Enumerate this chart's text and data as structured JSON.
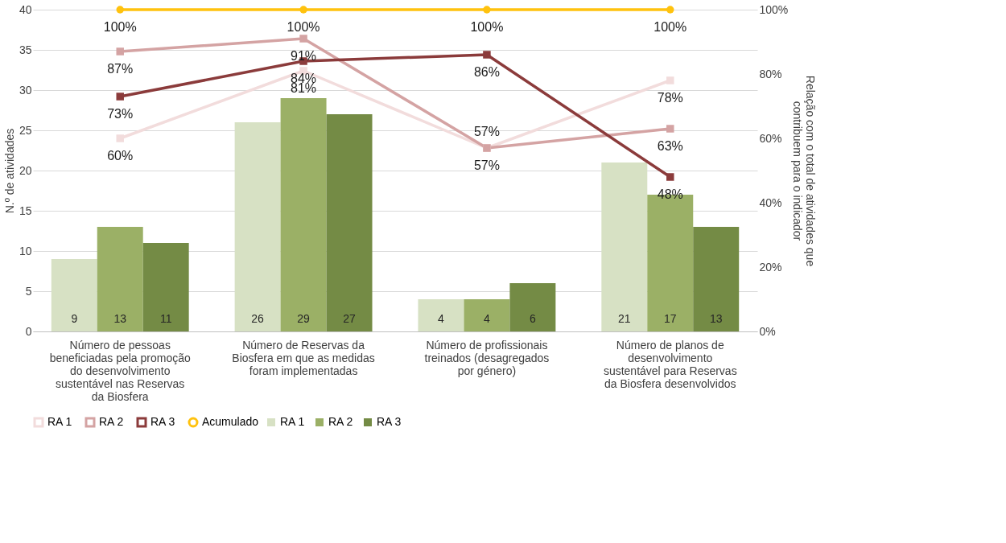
{
  "chart_data": {
    "type": "bar",
    "ylabel": "N.º de atividades",
    "y2label": "Relação com o total de atividades que contribuem para o indicador",
    "categories": [
      "Número de pessoas beneficiadas pela promoção do desenvolvimento sustentável nas Reservas da Biosfera",
      "Número de Reservas da Biosfera em que as medidas foram implementadas",
      "Número de profissionais treinados (desagregados por género)",
      "Número de planos de desenvolvimento sustentável para Reservas da Biosfera desenvolvidos"
    ],
    "series": [
      {
        "name": "RA 1",
        "color": "#d7e1c4",
        "values": [
          9,
          26,
          4,
          21
        ]
      },
      {
        "name": "RA 2",
        "color": "#9bb066",
        "values": [
          13,
          29,
          4,
          17
        ]
      },
      {
        "name": "RA 3",
        "color": "#748b45",
        "values": [
          11,
          27,
          6,
          13
        ]
      },
      {
        "name": "RA 1",
        "type": "line",
        "axis": "y2",
        "marker": "square",
        "color": "#f2dcdc",
        "values": [
          60,
          81,
          57,
          78
        ],
        "value_labels": [
          "60%",
          "81%",
          "57%",
          "78%"
        ]
      },
      {
        "name": "RA 2",
        "type": "line",
        "axis": "y2",
        "marker": "square",
        "color": "#d4a3a3",
        "values": [
          87,
          91,
          57,
          63
        ],
        "value_labels": [
          "87%",
          "91%",
          "57%",
          "63%"
        ]
      },
      {
        "name": "RA 3",
        "type": "line",
        "axis": "y2",
        "marker": "square",
        "color": "#8b3b3b",
        "values": [
          73,
          84,
          86,
          48
        ],
        "value_labels": [
          "73%",
          "84%",
          "86%",
          "48%"
        ]
      },
      {
        "name": "Acumulado",
        "type": "line",
        "axis": "y2",
        "marker": "circle",
        "color": "#ffc20e",
        "values": [
          100,
          100,
          100,
          100
        ],
        "value_labels": [
          "100%",
          "100%",
          "100%",
          "100%"
        ]
      }
    ],
    "data_labels": true,
    "ylim": [
      0,
      40
    ],
    "yticks": [
      0,
      5,
      10,
      15,
      20,
      25,
      30,
      35,
      40
    ],
    "y2lim": [
      0,
      100
    ],
    "y2ticks": [
      {
        "value": 0,
        "label": "0%"
      },
      {
        "value": 20,
        "label": "20%"
      },
      {
        "value": 40,
        "label": "40%"
      },
      {
        "value": 60,
        "label": "60%"
      },
      {
        "value": 80,
        "label": "80%"
      },
      {
        "value": 100,
        "label": "100%"
      }
    ],
    "grid": "y",
    "legend": "bottom"
  }
}
